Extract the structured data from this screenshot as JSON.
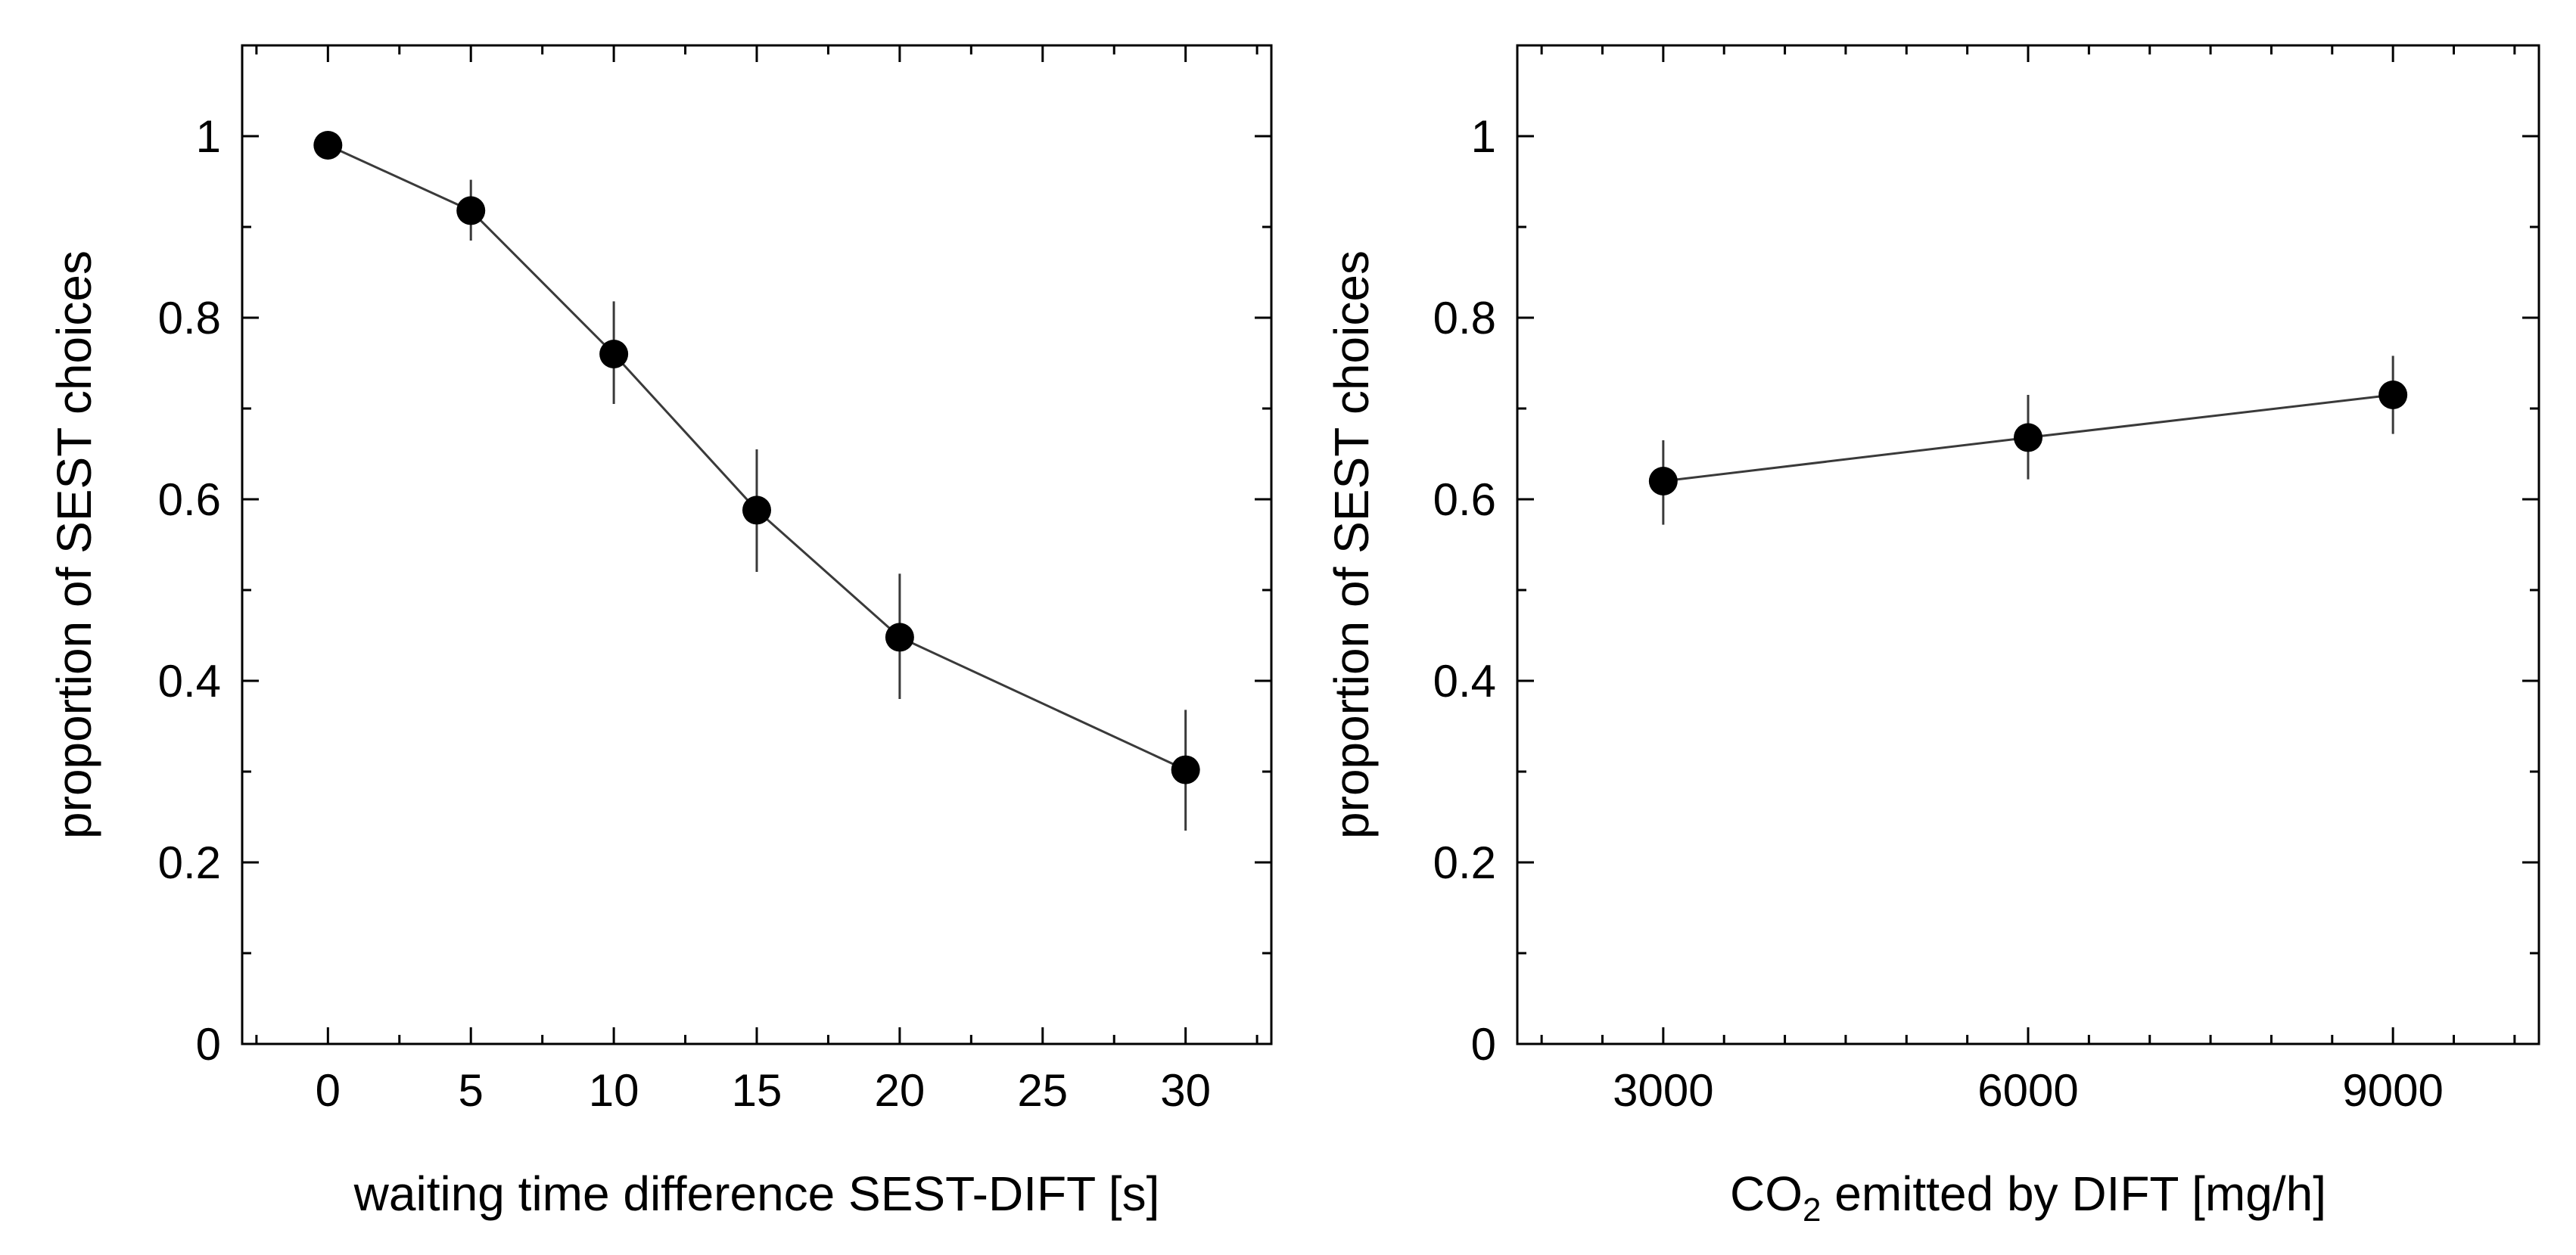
{
  "chart_data": [
    {
      "type": "line",
      "title": "",
      "xlabel": "waiting time difference SEST-DIFT [s]",
      "ylabel": "proportion of SEST choices",
      "xlim": [
        -3,
        33
      ],
      "ylim": [
        0,
        1.1
      ],
      "xticks": [
        0,
        5,
        10,
        15,
        20,
        25,
        30
      ],
      "xtick_labels": [
        "0",
        "5",
        "10",
        "15",
        "20",
        "25",
        "30"
      ],
      "x_minor_step": 2.5,
      "yticks": [
        0,
        0.2,
        0.4,
        0.6,
        0.8,
        1
      ],
      "ytick_labels": [
        "0",
        "0.2",
        "0.4",
        "0.6",
        "0.8",
        "1"
      ],
      "y_minor_step": 0.1,
      "grid": false,
      "series": [
        {
          "name": "SEST choices",
          "x": [
            0,
            5,
            10,
            15,
            20,
            30
          ],
          "y": [
            0.99,
            0.918,
            0.76,
            0.588,
            0.448,
            0.302
          ],
          "err_low": [
            0.985,
            0.885,
            0.705,
            0.52,
            0.38,
            0.235
          ],
          "err_high": [
            0.995,
            0.952,
            0.818,
            0.655,
            0.518,
            0.368
          ]
        }
      ]
    },
    {
      "type": "line",
      "title": "",
      "xlabel_parts": [
        "CO",
        "2",
        " emitted by DIFT [mg/h]"
      ],
      "ylabel": "proportion of SEST choices",
      "xlim": [
        1800,
        10200
      ],
      "ylim": [
        0,
        1.1
      ],
      "xticks": [
        3000,
        6000,
        9000
      ],
      "xtick_labels": [
        "3000",
        "6000",
        "9000"
      ],
      "x_minor_step": 500,
      "yticks": [
        0,
        0.2,
        0.4,
        0.6,
        0.8,
        1
      ],
      "ytick_labels": [
        "0",
        "0.2",
        "0.4",
        "0.6",
        "0.8",
        "1"
      ],
      "y_minor_step": 0.1,
      "grid": false,
      "series": [
        {
          "name": "SEST choices",
          "x": [
            3000,
            6000,
            9000
          ],
          "y": [
            0.62,
            0.668,
            0.715
          ],
          "err_low": [
            0.572,
            0.622,
            0.672
          ],
          "err_high": [
            0.665,
            0.715,
            0.758
          ]
        }
      ]
    }
  ]
}
